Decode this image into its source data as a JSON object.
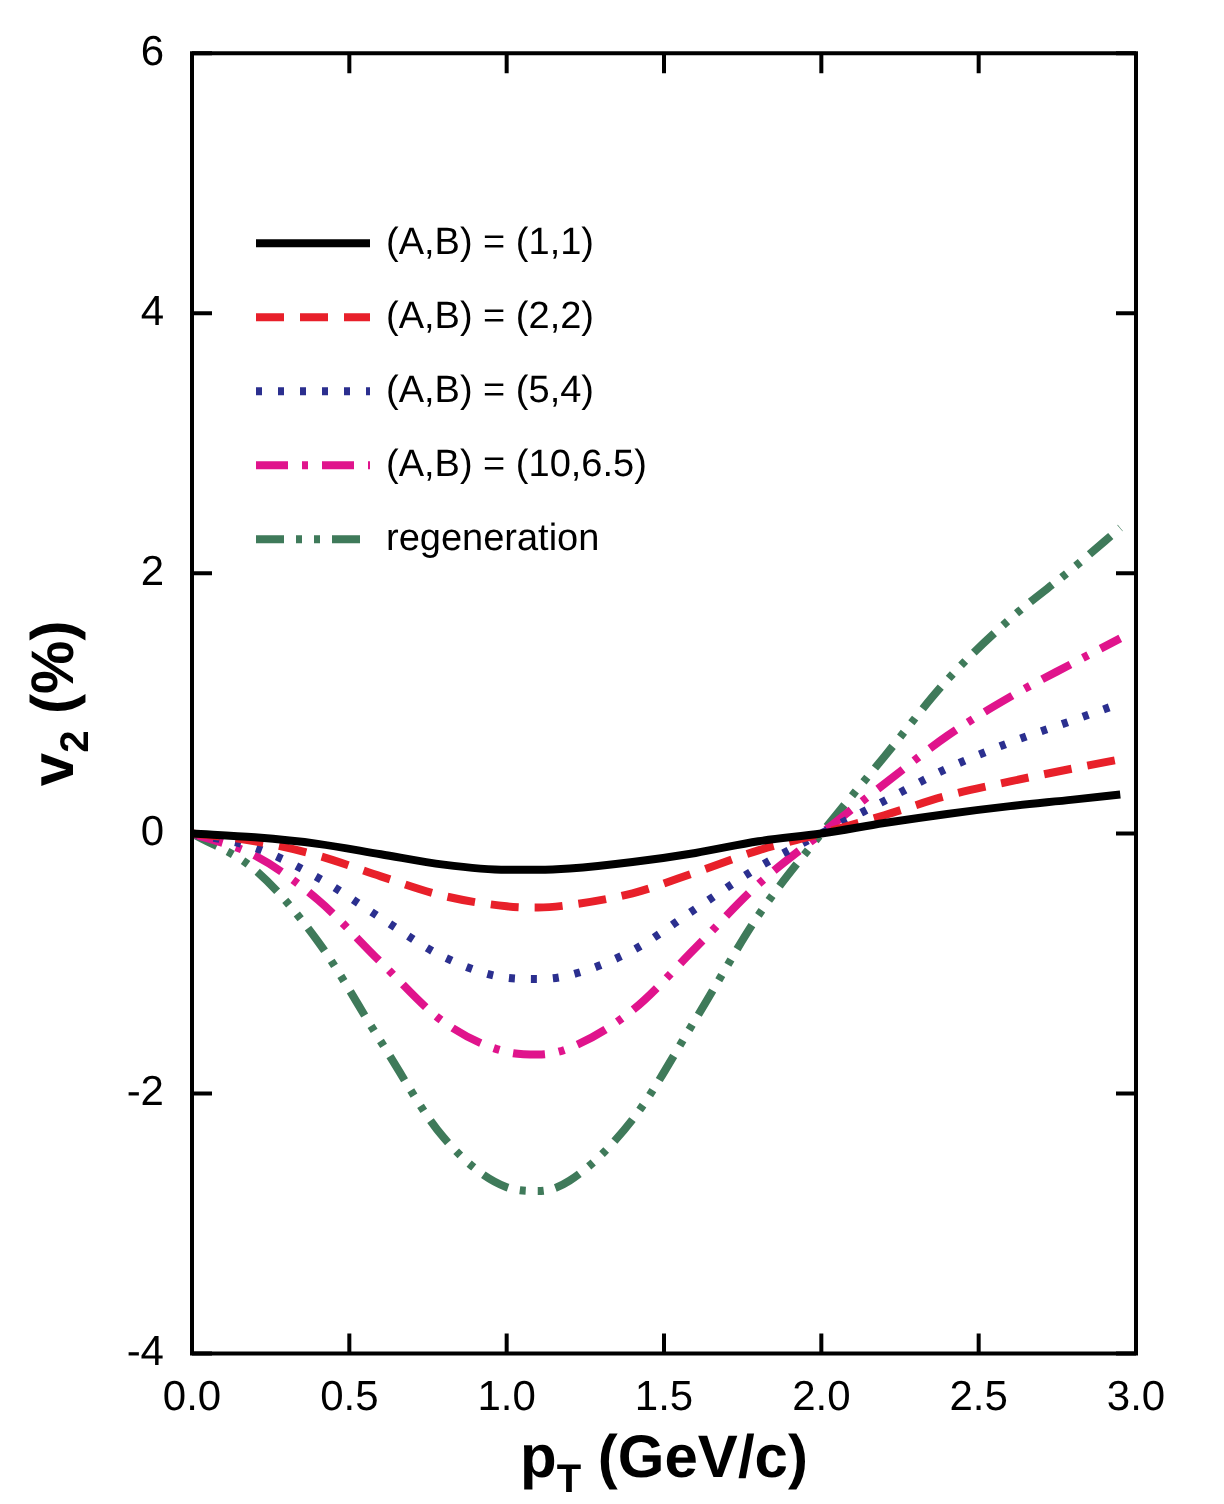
{
  "chart_data": {
    "type": "line",
    "xlabel": "p$_{T}$ (GeV/c)",
    "ylabel": "v$_{2}$ (%)",
    "x": [
      0,
      0.2,
      0.4,
      0.6,
      0.8,
      1.0,
      1.1,
      1.2,
      1.4,
      1.6,
      1.8,
      2.0,
      2.2,
      2.4,
      2.6,
      2.8,
      2.95
    ],
    "xlim": [
      0,
      3
    ],
    "xticks": [
      {
        "value": 0,
        "label": "0.0"
      },
      {
        "value": 0.5,
        "label": "0.5"
      },
      {
        "value": 1,
        "label": "1.0"
      },
      {
        "value": 1.5,
        "label": "1.5"
      },
      {
        "value": 2,
        "label": "2.0"
      },
      {
        "value": 2.5,
        "label": "2.5"
      },
      {
        "value": 3,
        "label": "3.0"
      }
    ],
    "ylim": [
      -4,
      6
    ],
    "yticks": [
      -4,
      -2,
      0,
      2,
      4,
      6
    ],
    "grid": false,
    "legend": "top left",
    "marker": "none",
    "series": [
      {
        "name": "(A,B) = (1,1)",
        "color": "#000000",
        "line_style": "solid",
        "values": [
          0,
          -0.03,
          -0.08,
          -0.16,
          -0.24,
          -0.28,
          -0.28,
          -0.27,
          -0.22,
          -0.15,
          -0.06,
          0,
          0.08,
          0.15,
          0.21,
          0.26,
          0.3
        ]
      },
      {
        "name": "(A,B) = (2,2)",
        "color": "#e8202a",
        "line_style": "dashed",
        "values": [
          0,
          -0.06,
          -0.17,
          -0.33,
          -0.48,
          -0.56,
          -0.57,
          -0.55,
          -0.46,
          -0.3,
          -0.13,
          0,
          0.14,
          0.29,
          0.4,
          0.5,
          0.57
        ]
      },
      {
        "name": "(A,B) = (5,4)",
        "color": "#2b2f8f",
        "line_style": "dotted",
        "values": [
          0,
          -0.11,
          -0.34,
          -0.65,
          -0.95,
          -1.11,
          -1.12,
          -1.09,
          -0.9,
          -0.58,
          -0.26,
          0,
          0.25,
          0.5,
          0.7,
          0.87,
          1.0
        ]
      },
      {
        "name": "(A,B) = (10,6.5)",
        "color": "#e0148c",
        "line_style": "dashdot",
        "values": [
          0,
          -0.17,
          -0.51,
          -0.99,
          -1.45,
          -1.68,
          -1.7,
          -1.65,
          -1.36,
          -0.88,
          -0.39,
          0,
          0.38,
          0.75,
          1.05,
          1.31,
          1.5
        ]
      },
      {
        "name": "regeneration",
        "color": "#3f7a5a",
        "line_style": "dashdotdot",
        "values": [
          0,
          -0.28,
          -0.83,
          -1.6,
          -2.34,
          -2.72,
          -2.75,
          -2.67,
          -2.2,
          -1.43,
          -0.63,
          0,
          0.59,
          1.18,
          1.65,
          2.04,
          2.35
        ]
      }
    ]
  }
}
